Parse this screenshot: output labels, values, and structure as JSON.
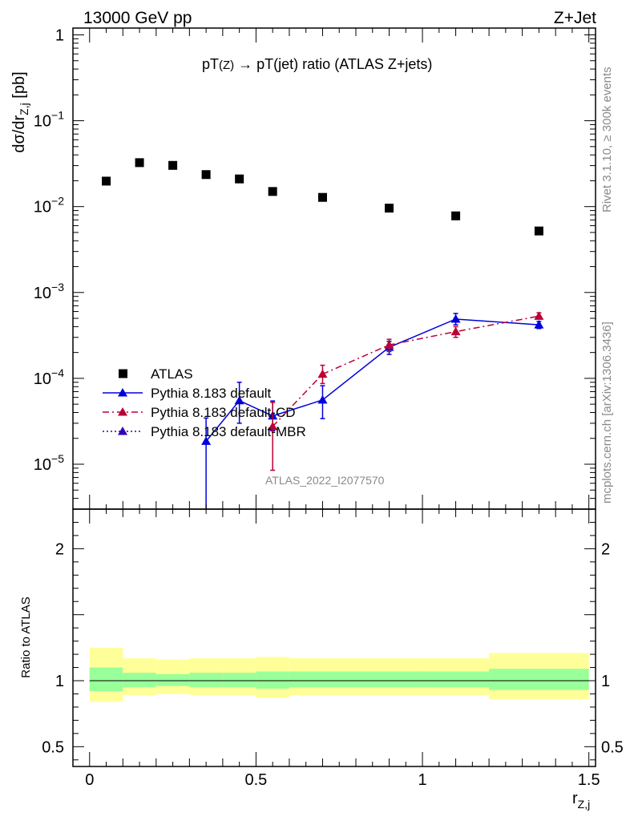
{
  "header": {
    "left": "13000 GeV pp",
    "right": "Z+Jet"
  },
  "side_labels": {
    "top": "Rivet 3.1.10, ≥ 300k events",
    "bottom": "mcplots.cern.ch [arXiv:1306.3436]"
  },
  "chart_data": {
    "type": "scatter",
    "title": "pT(Z) → pT(jet) ratio (ATLAS Z+jets)",
    "title_parts": {
      "a": "pT",
      "b": "(Z)",
      "c": " → pT(jet) ratio (ATLAS Z+jets)"
    },
    "analysis_label": "ATLAS_2022_I2077570",
    "ylabel_main": {
      "a": "dσ/dr",
      "b": "Z,j",
      "c": " [pb]"
    },
    "ylabel_ratio": "Ratio to ATLAS",
    "xlabel": {
      "a": "r",
      "b": "Z,j"
    },
    "xlim": [
      -0.05,
      1.52
    ],
    "ylim_main": [
      3e-06,
      1.2
    ],
    "ylim_ratio": [
      0.35,
      2.3
    ],
    "x_ticks": [
      {
        "v": 0,
        "label": "0"
      },
      {
        "v": 0.5,
        "label": "0.5"
      },
      {
        "v": 1,
        "label": "1"
      },
      {
        "v": 1.5,
        "label": "1.5"
      }
    ],
    "y_ticks_main": [
      {
        "v": 1,
        "base": "1",
        "exp": ""
      },
      {
        "v": 0.1,
        "base": "10",
        "exp": "−1"
      },
      {
        "v": 0.01,
        "base": "10",
        "exp": "−2"
      },
      {
        "v": 0.001,
        "base": "10",
        "exp": "−3"
      },
      {
        "v": 0.0001,
        "base": "10",
        "exp": "−4"
      },
      {
        "v": 1e-05,
        "base": "10",
        "exp": "−5"
      }
    ],
    "y_ticks_ratio": [
      {
        "v": 2,
        "label": "2"
      },
      {
        "v": 1,
        "label": "1"
      },
      {
        "v": 0.5,
        "label": "0.5"
      }
    ],
    "series": [
      {
        "name": "ATLAS",
        "color": "#000000",
        "marker": "square",
        "line": "none",
        "x": [
          0.05,
          0.15,
          0.25,
          0.35,
          0.45,
          0.55,
          0.7,
          0.9,
          1.1,
          1.35
        ],
        "y": [
          0.0198,
          0.0325,
          0.0302,
          0.0236,
          0.021,
          0.015,
          0.0128,
          0.0096,
          0.0078,
          0.0052
        ]
      },
      {
        "name": "Pythia 8.183 default",
        "color": "#0000dd",
        "marker": "triangle",
        "line": "solid",
        "x": [
          0.35,
          0.45,
          0.55,
          0.7,
          0.9,
          1.1,
          1.35
        ],
        "y": [
          1.85e-05,
          5.5e-05,
          3.65e-05,
          5.6e-05,
          0.00023,
          0.00049,
          0.00042
        ],
        "err_lo": [
          1.85e-05,
          2.5e-05,
          1.2e-05,
          2.2e-05,
          4e-05,
          7e-05,
          4e-05
        ],
        "err_hi": [
          1.6e-05,
          3.5e-05,
          1.8e-05,
          2.6e-05,
          4e-05,
          8e-05,
          4e-05
        ]
      },
      {
        "name": "Pythia 8.183 default-CD",
        "color": "#bb0033",
        "marker": "triangle",
        "line": "dashdot",
        "x": [
          0.55,
          0.7,
          0.9,
          1.1,
          1.35
        ],
        "y": [
          2.75e-05,
          0.000112,
          0.000245,
          0.00035,
          0.00053
        ],
        "err_lo": [
          1.9e-05,
          2.5e-05,
          4e-05,
          5e-05,
          4e-05
        ],
        "err_hi": [
          2.5e-05,
          3e-05,
          4e-05,
          5e-05,
          5e-05
        ]
      },
      {
        "name": "Pythia 8.183 default-MBR",
        "color": "#3300bb",
        "marker": "triangle",
        "line": "dotted",
        "x": [],
        "y": []
      }
    ],
    "ratio_bands": {
      "edges": [
        0.0,
        0.1,
        0.2,
        0.3,
        0.4,
        0.5,
        0.6,
        0.8,
        1.0,
        1.2,
        1.5
      ],
      "inner_lo": [
        0.92,
        0.95,
        0.96,
        0.95,
        0.95,
        0.94,
        0.95,
        0.95,
        0.95,
        0.93
      ],
      "inner_hi": [
        1.1,
        1.06,
        1.05,
        1.06,
        1.06,
        1.07,
        1.07,
        1.07,
        1.07,
        1.09
      ],
      "outer_lo": [
        0.84,
        0.89,
        0.9,
        0.89,
        0.89,
        0.87,
        0.89,
        0.89,
        0.89,
        0.86
      ],
      "outer_hi": [
        1.25,
        1.17,
        1.16,
        1.17,
        1.17,
        1.18,
        1.17,
        1.17,
        1.17,
        1.21
      ],
      "inner_color": "#99ff99",
      "outer_color": "#ffff99"
    }
  }
}
